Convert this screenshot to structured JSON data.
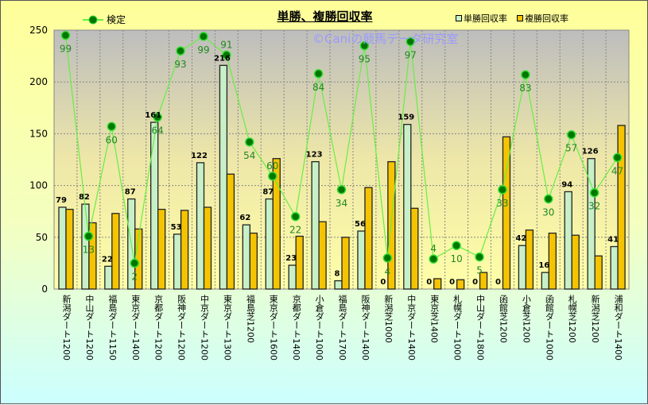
{
  "colors": {
    "win": "#c8f0c8",
    "place": "#f5c400",
    "line": "#66ee44",
    "point": "#007700",
    "label": "#228822"
  },
  "chart_data": {
    "type": "bar",
    "title": "単勝、複勝回収率",
    "watermark": "©Caniの競馬データ研究室",
    "ylim": [
      0,
      250
    ],
    "yticks": [
      0,
      50,
      100,
      150,
      200,
      250
    ],
    "grid": true,
    "legend_placement": "top",
    "categories": [
      "新潟ダート1200",
      "中山ダート1200",
      "福島ダート1150",
      "東京ダート1400",
      "京都ダート1200",
      "阪神ダート1200",
      "中京ダート1200",
      "東京ダート1300",
      "福島芝1200",
      "東京ダート1600",
      "京都ダート1400",
      "小倉ダート1000",
      "福島ダート1700",
      "阪神ダート1400",
      "新潟芝1000",
      "中京ダート1400",
      "東京芝1400",
      "札幌ダート1000",
      "中山ダート1800",
      "函館芝1200",
      "小倉芝1200",
      "函館ダート1000",
      "札幌芝1200",
      "新潟芝1200",
      "浦和ダート1400"
    ],
    "series": [
      {
        "name": "単勝回収率",
        "type": "bar",
        "values": [
          79,
          82,
          22,
          87,
          161,
          53,
          122,
          216,
          62,
          87,
          23,
          123,
          8,
          56,
          0,
          159,
          0,
          0,
          0,
          0,
          42,
          16,
          94,
          126,
          41
        ],
        "labels": [
          "79",
          "82",
          "22",
          "87",
          "161",
          "53",
          "122",
          "216",
          "62",
          "87",
          "23",
          "123",
          "8",
          "56",
          "0",
          "159",
          "0",
          "0",
          "0",
          "0",
          "42",
          "16",
          "94",
          "126",
          "41"
        ]
      },
      {
        "name": "複勝回収率",
        "type": "bar",
        "values": [
          77,
          64,
          73,
          58,
          77,
          76,
          79,
          111,
          54,
          126,
          51,
          65,
          50,
          98,
          123,
          78,
          10,
          9,
          16,
          147,
          57,
          54,
          52,
          32,
          158
        ]
      },
      {
        "name": "検定",
        "type": "line",
        "values": [
          245,
          51,
          157,
          25,
          166,
          230,
          244,
          226,
          142,
          109,
          70,
          208,
          96,
          235,
          30,
          239,
          29,
          42,
          31,
          96,
          207,
          87,
          149,
          93,
          127
        ],
        "labels": [
          "99",
          "13",
          "60",
          "2",
          "64",
          "93",
          "99",
          "91",
          "54",
          "60",
          "22",
          "84",
          "34",
          "95",
          "4",
          "97",
          "4",
          "10",
          "5",
          "33",
          "83",
          "30",
          "57",
          "32",
          "47"
        ]
      }
    ]
  }
}
